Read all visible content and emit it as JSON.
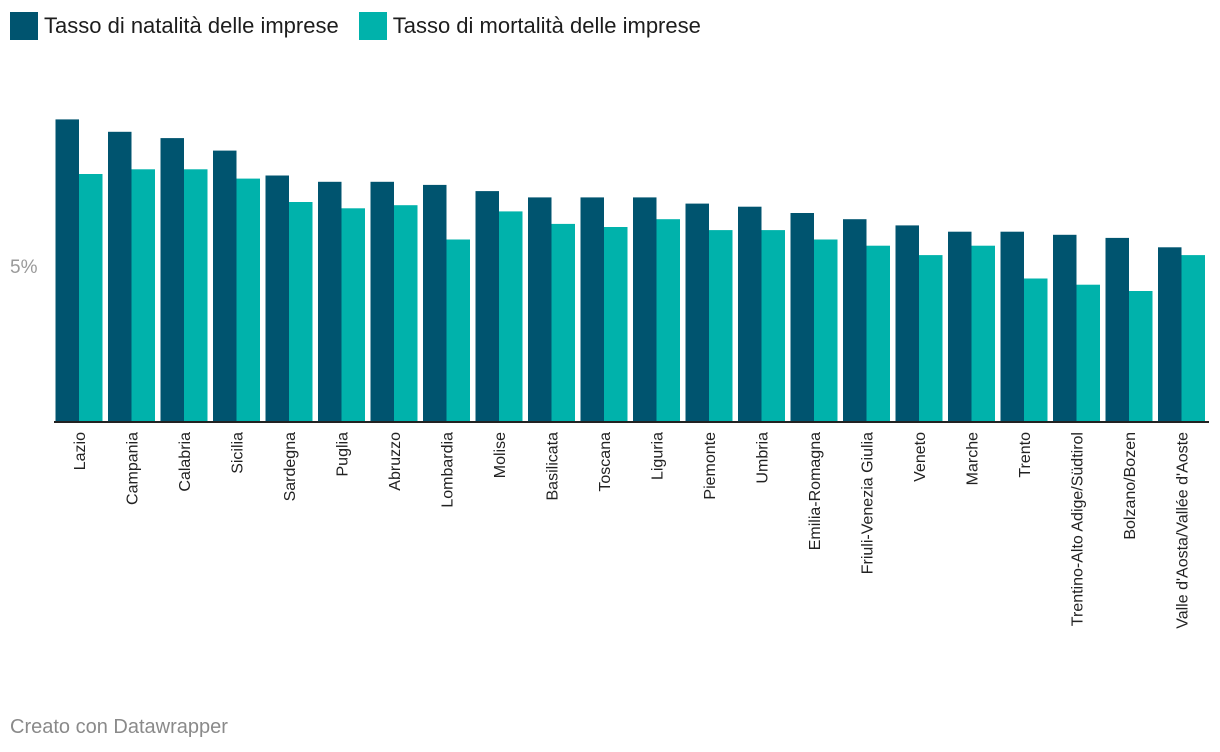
{
  "legend": {
    "items": [
      {
        "label": "Tasso di natalità delle imprese",
        "color": "#00546f"
      },
      {
        "label": "Tasso di mortalità delle imprese",
        "color": "#00b2ab"
      }
    ]
  },
  "footer": {
    "credit": "Creato con Datawrapper"
  },
  "chart_data": {
    "type": "bar",
    "title": "",
    "xlabel": "",
    "ylabel": "",
    "ylim": [
      0,
      10
    ],
    "yticks": [
      {
        "value": 5,
        "label": "5%"
      }
    ],
    "grid": false,
    "legend_position": "top-left",
    "categories": [
      "Lazio",
      "Campania",
      "Calabria",
      "Sicilia",
      "Sardegna",
      "Puglia",
      "Abruzzo",
      "Lombardia",
      "Molise",
      "Basilicata",
      "Toscana",
      "Liguria",
      "Piemonte",
      "Umbria",
      "Emilia-Romagna",
      "Friuli-Venezia Giulia",
      "Veneto",
      "Marche",
      "Trento",
      "Trentino-Alto Adige/Südtirol",
      "Bolzano/Bozen",
      "Valle d'Aosta/Vallée d'Aoste"
    ],
    "series": [
      {
        "name": "Tasso di natalità delle imprese",
        "color": "#00546f",
        "values": [
          9.7,
          9.3,
          9.1,
          8.7,
          7.9,
          7.7,
          7.7,
          7.6,
          7.4,
          7.2,
          7.2,
          7.2,
          7.0,
          6.9,
          6.7,
          6.5,
          6.3,
          6.1,
          6.1,
          6.0,
          5.9,
          5.6
        ]
      },
      {
        "name": "Tasso di mortalità delle imprese",
        "color": "#00b2ab",
        "values": [
          7.95,
          8.1,
          8.1,
          7.8,
          7.05,
          6.85,
          6.95,
          5.85,
          6.75,
          6.35,
          6.25,
          6.5,
          6.15,
          6.15,
          5.85,
          5.65,
          5.35,
          5.65,
          4.6,
          4.4,
          4.2,
          5.35
        ]
      }
    ]
  }
}
